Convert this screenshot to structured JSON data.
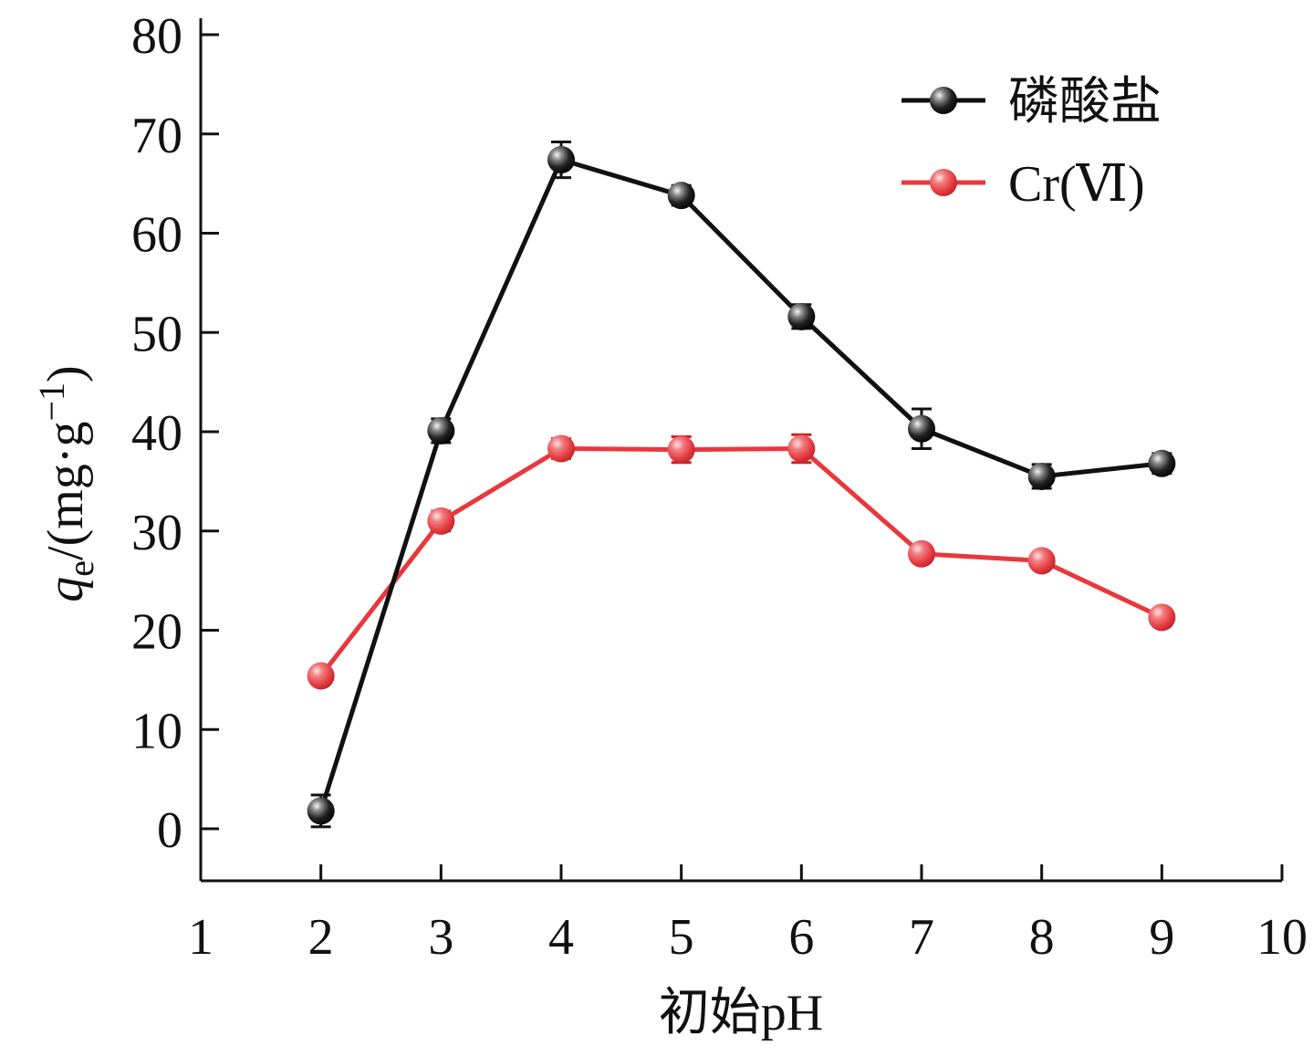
{
  "chart_data": {
    "type": "line",
    "xlabel": "初始pH",
    "ylabel_main": "q",
    "ylabel_sub": "e",
    "ylabel_unit": "/(mg·g",
    "ylabel_sup": "−1",
    "ylabel_close": ")",
    "xlim": [
      1,
      10
    ],
    "ylim": [
      -5,
      80
    ],
    "x_ticks": [
      1,
      2,
      3,
      4,
      5,
      6,
      7,
      8,
      9,
      10
    ],
    "y_ticks": [
      0,
      10,
      20,
      30,
      40,
      50,
      60,
      70,
      80
    ],
    "grid": false,
    "legend_position": "top-right",
    "series": [
      {
        "name": "磷酸盐",
        "color": "#111111",
        "x": [
          2,
          3,
          4,
          5,
          6,
          7,
          8,
          9
        ],
        "y": [
          1.8,
          40.1,
          67.4,
          63.8,
          51.6,
          40.3,
          35.5,
          36.8
        ],
        "err": [
          1.6,
          1.2,
          1.8,
          1.0,
          1.2,
          2.0,
          1.2,
          1.0
        ]
      },
      {
        "name": "Cr(Ⅵ)",
        "color": "#e8383d",
        "x": [
          2,
          3,
          4,
          5,
          6,
          7,
          8,
          9
        ],
        "y": [
          15.4,
          31.0,
          38.3,
          38.2,
          38.3,
          27.7,
          27.0,
          21.3
        ],
        "err": [
          0.6,
          1.0,
          1.0,
          1.3,
          1.4,
          0.8,
          0.6,
          0.8
        ]
      }
    ]
  }
}
